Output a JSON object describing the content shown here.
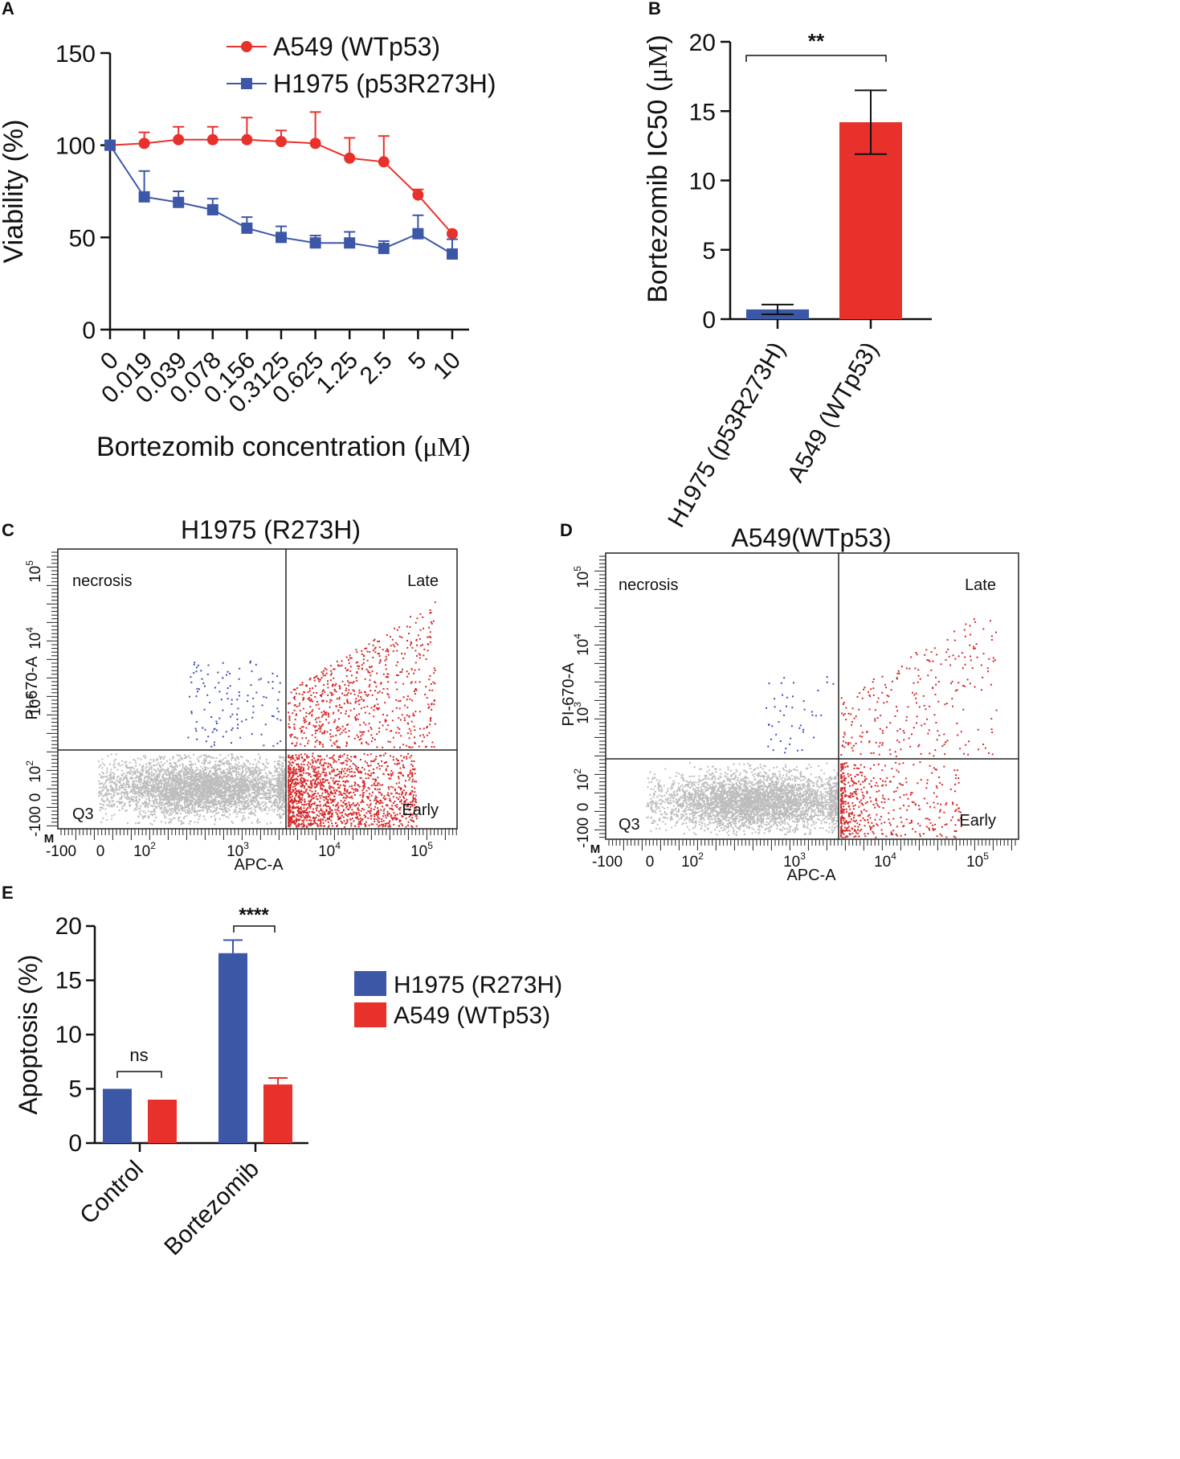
{
  "colors": {
    "red": "#e8312b",
    "blue": "#3d57a7",
    "gray": "#bdbdbd",
    "flowRed": "#d42a2a",
    "flowBlue": "#3b4fb8"
  },
  "chart_data": [
    {
      "id": "A",
      "letter": "A",
      "type": "line",
      "x": [
        "0",
        "0.019",
        "0.039",
        "0.078",
        "0.156",
        "0.3125",
        "0.625",
        "1.25",
        "2.5",
        "5",
        "10"
      ],
      "series": [
        {
          "name": "A549 (WTp53)",
          "color": "#e8312b",
          "marker": "circle",
          "values": [
            100,
            101,
            103,
            103,
            103,
            102,
            101,
            93,
            91,
            73,
            52
          ],
          "errors": [
            0,
            6,
            7,
            7,
            12,
            6,
            17,
            11,
            14,
            3,
            0
          ]
        },
        {
          "name": "H1975 (p53R273H)",
          "color": "#3d57a7",
          "marker": "square",
          "values": [
            100,
            72,
            69,
            65,
            55,
            50,
            47,
            47,
            44,
            52,
            41
          ],
          "errors": [
            0,
            14,
            6,
            6,
            6,
            6,
            4,
            6,
            4,
            10,
            8
          ]
        }
      ],
      "yticks": [
        0,
        50,
        100,
        150
      ],
      "ylim": [
        0,
        150
      ],
      "ylabel": "Viability (%)",
      "xlabel": "Bortezomib concentration (",
      "xlabel_unit": "μM",
      "xlabel_close": ")"
    },
    {
      "id": "B",
      "letter": "B",
      "type": "bar",
      "categories": [
        "H1975 (p53R273H)",
        "A549 (WTp53)"
      ],
      "values": [
        0.7,
        14.2
      ],
      "errors": [
        0.35,
        2.3
      ],
      "colors": [
        "#3d57a7",
        "#e8312b"
      ],
      "yticks": [
        0,
        5,
        10,
        15,
        20
      ],
      "ylim": [
        0,
        20
      ],
      "ylabel": "Bortezomib IC50 (",
      "ylabel_unit": "μM",
      "ylabel_close": ")",
      "significance": "**"
    },
    {
      "id": "C",
      "letter": "C",
      "type": "scatter",
      "title": "H1975 (R273H)",
      "quadrants": {
        "ul": "necrosis",
        "ur": "Late",
        "ll": "Q3",
        "lr": "Early"
      },
      "xlabel": "APC-A",
      "ylabel": "PI-670-A",
      "xticks": [
        "-100",
        "0",
        "10",
        "10",
        "10",
        "10"
      ],
      "xtick_exps": [
        "",
        "",
        "2",
        "3",
        "4",
        "5"
      ],
      "yticks": [
        "-100",
        "0",
        "10",
        "10",
        "10",
        "10"
      ],
      "ytick_exps": [
        "",
        "",
        "2",
        "3",
        "4",
        "5"
      ],
      "corner_mark": "M"
    },
    {
      "id": "D",
      "letter": "D",
      "type": "scatter",
      "title": "A549(WTp53)",
      "quadrants": {
        "ul": "necrosis",
        "ur": "Late",
        "ll": "Q3",
        "lr": "Early"
      },
      "xlabel": "APC-A",
      "ylabel": "PI-670-A",
      "xticks": [
        "-100",
        "0",
        "10",
        "10",
        "10",
        "10"
      ],
      "xtick_exps": [
        "",
        "",
        "2",
        "3",
        "4",
        "5"
      ],
      "yticks": [
        "-100",
        "0",
        "10",
        "10",
        "10",
        "10"
      ],
      "ytick_exps": [
        "",
        "",
        "2",
        "3",
        "4",
        "5"
      ],
      "corner_mark": "M"
    },
    {
      "id": "E",
      "letter": "E",
      "type": "bar",
      "categories": [
        "Control",
        "Bortezomib"
      ],
      "series": [
        {
          "name": "H1975 (R273H)",
          "color": "#3d57a7",
          "values": [
            5.0,
            17.5
          ],
          "errors": [
            0,
            1.2
          ]
        },
        {
          "name": "A549 (WTp53)",
          "color": "#e8312b",
          "values": [
            4.0,
            5.4
          ],
          "errors": [
            0,
            0.6
          ]
        }
      ],
      "yticks": [
        0,
        5,
        10,
        15,
        20
      ],
      "ylim": [
        0,
        20
      ],
      "ylabel": "Apoptosis (%)",
      "significance": [
        "ns",
        "****"
      ]
    }
  ]
}
